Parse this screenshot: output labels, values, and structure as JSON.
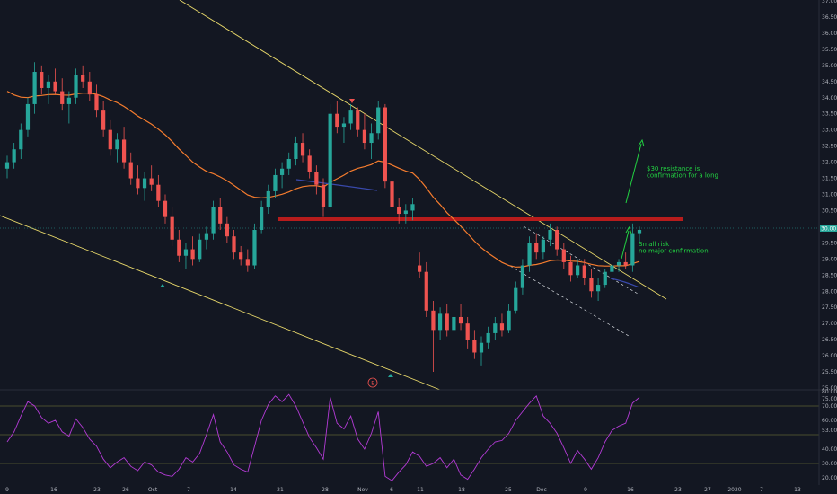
{
  "chart_data": [
    {
      "type": "candlestick",
      "x_tick_labels": [
        "9",
        "16",
        "23",
        "26",
        "Oct",
        "7",
        "14",
        "21",
        "28",
        "Nov",
        "6",
        "11",
        "18",
        "25",
        "Dec",
        "9",
        "16",
        "23",
        "27",
        "2020",
        "7",
        "13"
      ],
      "y_tick_labels": [
        "37.00",
        "36.50",
        "36.00",
        "35.50",
        "35.00",
        "34.50",
        "34.00",
        "33.50",
        "33.00",
        "32.50",
        "32.00",
        "31.50",
        "31.00",
        "30.50",
        "30.00",
        "29.50",
        "29.00",
        "28.50",
        "28.00",
        "27.50",
        "27.00",
        "26.50",
        "26.00",
        "25.50",
        "25.00"
      ],
      "ylim": [
        25.0,
        37.0
      ],
      "price_label": "30.00",
      "candles": [
        [
          31.8,
          32.2,
          31.5,
          32.0
        ],
        [
          32.0,
          32.6,
          31.8,
          32.4
        ],
        [
          32.4,
          33.2,
          32.1,
          33.0
        ],
        [
          33.0,
          34.0,
          32.8,
          33.8
        ],
        [
          33.8,
          35.1,
          33.5,
          34.8
        ],
        [
          34.8,
          35.0,
          34.1,
          34.3
        ],
        [
          34.3,
          34.7,
          33.8,
          34.5
        ],
        [
          34.5,
          34.9,
          34.1,
          34.2
        ],
        [
          34.2,
          34.6,
          33.6,
          33.8
        ],
        [
          33.8,
          34.2,
          33.2,
          34.0
        ],
        [
          34.0,
          34.9,
          33.8,
          34.7
        ],
        [
          34.7,
          35.0,
          34.3,
          34.5
        ],
        [
          34.5,
          34.8,
          33.9,
          34.1
        ],
        [
          34.1,
          34.4,
          33.4,
          33.6
        ],
        [
          33.6,
          33.9,
          32.8,
          33.0
        ],
        [
          33.0,
          33.3,
          32.2,
          32.4
        ],
        [
          32.4,
          32.9,
          32.0,
          32.7
        ],
        [
          32.7,
          33.1,
          31.8,
          32.0
        ],
        [
          32.0,
          32.3,
          31.3,
          31.5
        ],
        [
          31.5,
          31.9,
          31.0,
          31.2
        ],
        [
          31.2,
          31.7,
          30.8,
          31.5
        ],
        [
          31.5,
          31.9,
          31.1,
          31.3
        ],
        [
          31.3,
          31.6,
          30.6,
          30.8
        ],
        [
          30.8,
          31.0,
          30.1,
          30.3
        ],
        [
          30.3,
          30.6,
          29.4,
          29.6
        ],
        [
          29.6,
          29.9,
          28.9,
          29.1
        ],
        [
          29.1,
          29.5,
          28.7,
          29.3
        ],
        [
          29.3,
          29.7,
          28.8,
          29.0
        ],
        [
          29.0,
          29.8,
          28.9,
          29.6
        ],
        [
          29.6,
          30.0,
          29.3,
          29.8
        ],
        [
          29.8,
          30.8,
          29.6,
          30.6
        ],
        [
          30.6,
          30.9,
          29.9,
          30.1
        ],
        [
          30.1,
          30.3,
          29.5,
          29.7
        ],
        [
          29.7,
          29.9,
          29.0,
          29.2
        ],
        [
          29.2,
          29.4,
          28.8,
          29.0
        ],
        [
          29.0,
          29.3,
          28.6,
          28.8
        ],
        [
          28.8,
          30.1,
          28.7,
          29.9
        ],
        [
          29.9,
          30.8,
          29.8,
          30.6
        ],
        [
          30.6,
          31.3,
          30.4,
          31.1
        ],
        [
          31.1,
          31.8,
          30.9,
          31.6
        ],
        [
          31.6,
          32.0,
          31.2,
          31.8
        ],
        [
          31.8,
          32.3,
          31.6,
          32.1
        ],
        [
          32.1,
          32.8,
          31.9,
          32.6
        ],
        [
          32.6,
          32.9,
          32.0,
          32.2
        ],
        [
          32.2,
          32.4,
          31.5,
          31.7
        ],
        [
          31.7,
          31.9,
          31.0,
          31.3
        ],
        [
          31.3,
          31.5,
          30.3,
          30.6
        ],
        [
          30.6,
          33.8,
          30.5,
          33.5
        ],
        [
          33.5,
          33.9,
          32.9,
          33.1
        ],
        [
          33.1,
          33.4,
          32.6,
          33.2
        ],
        [
          33.2,
          33.8,
          33.0,
          33.6
        ],
        [
          33.6,
          33.7,
          32.8,
          33.0
        ],
        [
          33.0,
          33.5,
          32.4,
          32.6
        ],
        [
          32.6,
          33.2,
          32.1,
          32.9
        ],
        [
          32.9,
          33.9,
          32.7,
          33.7
        ],
        [
          33.7,
          33.8,
          31.2,
          31.4
        ],
        [
          31.4,
          31.7,
          30.4,
          30.6
        ],
        [
          30.6,
          30.9,
          30.1,
          30.4
        ],
        [
          30.4,
          30.7,
          30.1,
          30.5
        ],
        [
          30.5,
          30.9,
          30.2,
          30.7
        ],
        [
          28.8,
          29.2,
          28.4,
          28.6
        ],
        [
          28.6,
          28.9,
          27.2,
          27.4
        ],
        [
          27.4,
          27.7,
          25.5,
          26.8
        ],
        [
          26.8,
          27.5,
          26.5,
          27.3
        ],
        [
          27.3,
          27.6,
          26.6,
          26.8
        ],
        [
          26.8,
          27.4,
          26.5,
          27.2
        ],
        [
          27.2,
          27.6,
          26.8,
          27.0
        ],
        [
          27.0,
          27.2,
          26.2,
          26.5
        ],
        [
          26.5,
          26.8,
          25.9,
          26.1
        ],
        [
          26.1,
          26.6,
          25.7,
          26.4
        ],
        [
          26.4,
          26.9,
          26.2,
          26.7
        ],
        [
          26.7,
          27.2,
          26.5,
          27.0
        ],
        [
          27.0,
          27.3,
          26.6,
          26.8
        ],
        [
          26.8,
          27.6,
          26.7,
          27.4
        ],
        [
          27.4,
          28.3,
          27.3,
          28.1
        ],
        [
          28.1,
          29.0,
          27.9,
          28.8
        ],
        [
          28.8,
          29.7,
          28.6,
          29.5
        ],
        [
          29.5,
          29.8,
          29.0,
          29.2
        ],
        [
          29.2,
          29.7,
          29.0,
          29.6
        ],
        [
          29.6,
          30.1,
          29.4,
          29.9
        ],
        [
          29.9,
          30.0,
          29.1,
          29.3
        ],
        [
          29.3,
          29.5,
          28.7,
          28.9
        ],
        [
          28.9,
          29.1,
          28.3,
          28.5
        ],
        [
          28.5,
          29.0,
          28.4,
          28.8
        ],
        [
          28.8,
          29.0,
          28.2,
          28.4
        ],
        [
          28.4,
          28.7,
          27.8,
          28.0
        ],
        [
          28.0,
          28.4,
          27.7,
          28.2
        ],
        [
          28.2,
          28.7,
          28.1,
          28.6
        ],
        [
          28.6,
          28.9,
          28.3,
          28.8
        ],
        [
          28.8,
          29.0,
          28.6,
          28.9
        ],
        [
          28.9,
          29.2,
          28.7,
          28.8
        ],
        [
          28.8,
          30.1,
          28.6,
          29.8
        ],
        [
          29.8,
          30.0,
          29.5,
          29.9
        ]
      ],
      "ema_color": "#f57c2e",
      "rsi": {
        "ylim": [
          15,
          80
        ],
        "y_tick_labels": [
          "80.00",
          "75.00",
          "70.00",
          "60.00",
          "53.00",
          "40.00",
          "30.00",
          "20.00"
        ],
        "levels": [
          70,
          50,
          30
        ],
        "color": "#b43bd6",
        "values": [
          45,
          52,
          63,
          73,
          70,
          62,
          58,
          60,
          52,
          49,
          61,
          55,
          47,
          42,
          33,
          27,
          31,
          34,
          28,
          25,
          31,
          29,
          24,
          22,
          21,
          26,
          34,
          31,
          37,
          50,
          64,
          45,
          38,
          29,
          26,
          24,
          42,
          60,
          71,
          77,
          73,
          78,
          70,
          59,
          48,
          41,
          33,
          76,
          58,
          54,
          63,
          47,
          40,
          51,
          66,
          21,
          18,
          24,
          29,
          38,
          35,
          28,
          30,
          34,
          27,
          33,
          22,
          19,
          26,
          34,
          40,
          45,
          46,
          51,
          60,
          66,
          72,
          77,
          63,
          58,
          51,
          41,
          30,
          39,
          33,
          26,
          34,
          45,
          53,
          56,
          58,
          72,
          76
        ]
      }
    }
  ],
  "annotations": {
    "resistance_note": "$30 resistance is confirmation for a long",
    "risk_note": "Small risk\nno major confirmation",
    "event_marker": "E"
  },
  "colors": {
    "background": "#131722",
    "up_candle": "#26a69a",
    "down_candle": "#ef5350",
    "trend_line": "#e8d86a",
    "resistance_zone": "#b71c1c",
    "annotation": "#22d342",
    "price_label_bg": "#26a69a"
  }
}
